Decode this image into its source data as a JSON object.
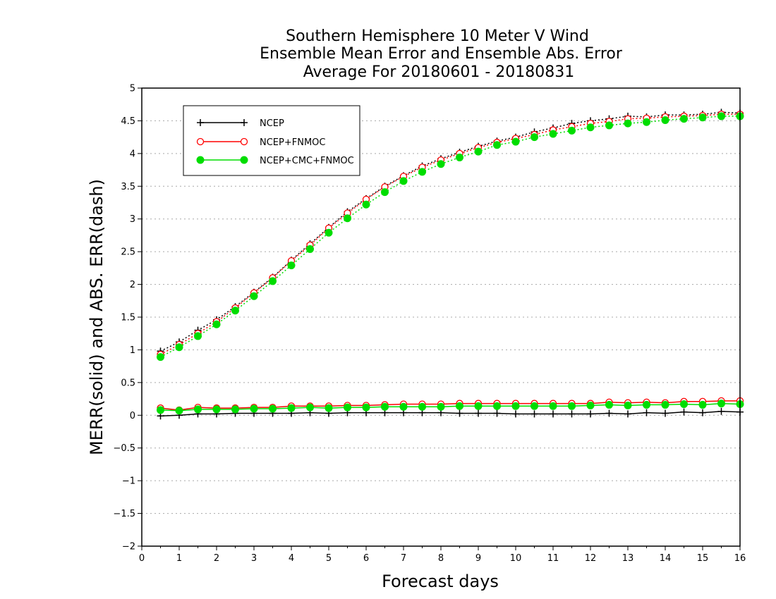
{
  "chart_data": {
    "type": "line",
    "title_lines": [
      "Southern Hemisphere 10 Meter V Wind",
      "Ensemble Mean Error and Ensemble Abs. Error",
      "Average For 20180601 - 20180831"
    ],
    "xlabel": "Forecast days",
    "ylabel": "MERR(solid) and ABS. ERR(dash)",
    "xlim": [
      0,
      16
    ],
    "ylim": [
      -2,
      5
    ],
    "xticks": [
      "0",
      "1",
      "2",
      "3",
      "4",
      "5",
      "6",
      "7",
      "8",
      "9",
      "10",
      "11",
      "12",
      "13",
      "14",
      "15",
      "16"
    ],
    "yticks": [
      "5",
      "4.5",
      "4",
      "3.5",
      "3",
      "2.5",
      "2",
      "1.5",
      "1",
      "0.5",
      "0",
      "−0.5",
      "−1",
      "−1.5",
      "−2"
    ],
    "grid": "horizontal dotted",
    "legend_position": "top-left",
    "x": [
      0.5,
      1,
      1.5,
      2,
      2.5,
      3,
      3.5,
      4,
      4.5,
      5,
      5.5,
      6,
      6.5,
      7,
      7.5,
      8,
      8.5,
      9,
      9.5,
      10,
      10.5,
      11,
      11.5,
      12,
      12.5,
      13,
      13.5,
      14,
      14.5,
      15,
      15.5,
      16
    ],
    "series": [
      {
        "name": "NCEP",
        "color": "#000000",
        "marker": "plus",
        "merr": [
          -0.01,
          0.0,
          0.02,
          0.02,
          0.03,
          0.03,
          0.03,
          0.03,
          0.04,
          0.03,
          0.04,
          0.04,
          0.04,
          0.04,
          0.04,
          0.04,
          0.03,
          0.03,
          0.03,
          0.02,
          0.02,
          0.02,
          0.02,
          0.02,
          0.03,
          0.02,
          0.04,
          0.03,
          0.05,
          0.04,
          0.06,
          0.05
        ],
        "abserr": [
          0.98,
          1.12,
          1.3,
          1.46,
          1.66,
          1.88,
          2.11,
          2.37,
          2.62,
          2.87,
          3.11,
          3.31,
          3.5,
          3.66,
          3.81,
          3.92,
          4.02,
          4.11,
          4.19,
          4.25,
          4.33,
          4.39,
          4.46,
          4.5,
          4.53,
          4.57,
          4.56,
          4.59,
          4.59,
          4.6,
          4.63,
          4.62
        ]
      },
      {
        "name": "NCEP+FNMOC",
        "color": "#ff0000",
        "marker": "open-circle",
        "merr": [
          0.11,
          0.08,
          0.12,
          0.11,
          0.11,
          0.12,
          0.12,
          0.14,
          0.14,
          0.14,
          0.15,
          0.15,
          0.16,
          0.17,
          0.17,
          0.17,
          0.18,
          0.18,
          0.18,
          0.18,
          0.18,
          0.18,
          0.18,
          0.18,
          0.2,
          0.19,
          0.2,
          0.19,
          0.21,
          0.21,
          0.22,
          0.22
        ],
        "abserr": [
          0.93,
          1.08,
          1.25,
          1.43,
          1.64,
          1.87,
          2.1,
          2.36,
          2.6,
          2.86,
          3.09,
          3.3,
          3.49,
          3.65,
          3.79,
          3.9,
          4.0,
          4.09,
          4.17,
          4.23,
          4.29,
          4.36,
          4.41,
          4.46,
          4.49,
          4.53,
          4.54,
          4.56,
          4.57,
          4.58,
          4.6,
          4.6
        ]
      },
      {
        "name": "NCEP+CMC+FNMOC",
        "color": "#00dd00",
        "marker": "filled-circle",
        "merr": [
          0.08,
          0.07,
          0.09,
          0.09,
          0.09,
          0.1,
          0.1,
          0.11,
          0.12,
          0.11,
          0.12,
          0.12,
          0.13,
          0.13,
          0.13,
          0.13,
          0.14,
          0.14,
          0.14,
          0.14,
          0.14,
          0.14,
          0.14,
          0.15,
          0.16,
          0.15,
          0.16,
          0.16,
          0.17,
          0.16,
          0.18,
          0.17
        ],
        "abserr": [
          0.89,
          1.04,
          1.21,
          1.39,
          1.6,
          1.82,
          2.05,
          2.29,
          2.54,
          2.79,
          3.01,
          3.22,
          3.41,
          3.58,
          3.72,
          3.84,
          3.94,
          4.03,
          4.13,
          4.18,
          4.25,
          4.3,
          4.35,
          4.4,
          4.43,
          4.46,
          4.48,
          4.51,
          4.53,
          4.55,
          4.57,
          4.57
        ]
      }
    ]
  }
}
